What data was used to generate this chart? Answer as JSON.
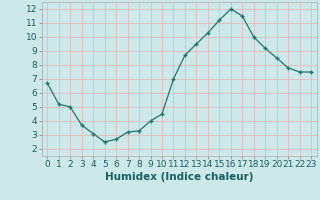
{
  "x": [
    0,
    1,
    2,
    3,
    4,
    5,
    6,
    7,
    8,
    9,
    10,
    11,
    12,
    13,
    14,
    15,
    16,
    17,
    18,
    19,
    20,
    21,
    22,
    23
  ],
  "y": [
    6.7,
    5.2,
    5.0,
    3.7,
    3.1,
    2.5,
    2.7,
    3.2,
    3.3,
    4.0,
    4.5,
    7.0,
    8.7,
    9.5,
    10.3,
    11.2,
    12.0,
    11.5,
    10.0,
    9.2,
    8.5,
    7.8,
    7.5,
    7.5
  ],
  "line_color": "#1a7a6e",
  "marker": "+",
  "marker_color": "#1a7a6e",
  "bg_color": "#cce8e8",
  "grid_color_v": "#e8b4b4",
  "grid_color_h": "#e8b4b4",
  "xlabel": "Humidex (Indice chaleur)",
  "xlim": [
    -0.5,
    23.5
  ],
  "ylim": [
    1.5,
    12.5
  ],
  "yticks": [
    2,
    3,
    4,
    5,
    6,
    7,
    8,
    9,
    10,
    11,
    12
  ],
  "xticks": [
    0,
    1,
    2,
    3,
    4,
    5,
    6,
    7,
    8,
    9,
    10,
    11,
    12,
    13,
    14,
    15,
    16,
    17,
    18,
    19,
    20,
    21,
    22,
    23
  ],
  "xlabel_fontsize": 7.5,
  "tick_fontsize": 6.5,
  "text_color": "#1a6060"
}
